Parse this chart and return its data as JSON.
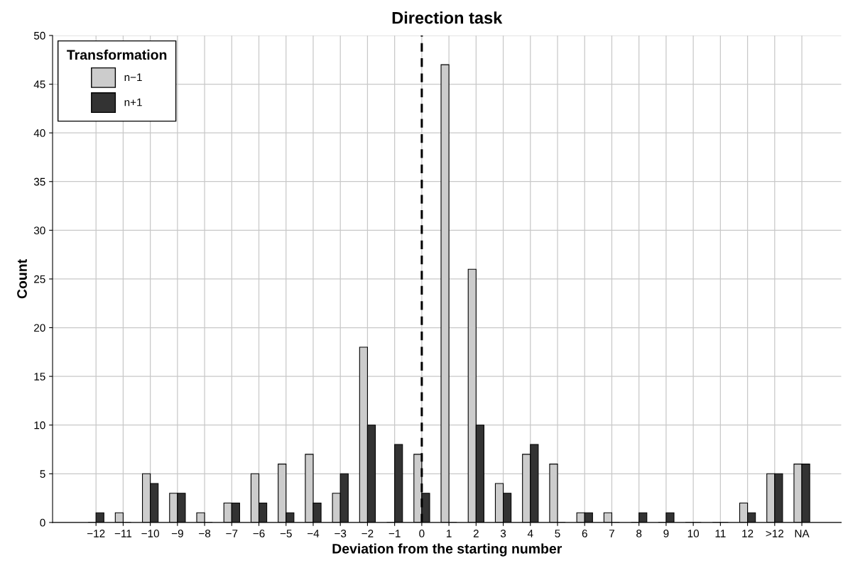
{
  "chart_data": {
    "type": "bar",
    "title": "Direction task",
    "xlabel": "Deviation from the starting number",
    "ylabel": "Count",
    "legend_title": "Transformation",
    "categories": [
      "−12",
      "−11",
      "−10",
      "−9",
      "−8",
      "−7",
      "−6",
      "−5",
      "−4",
      "−3",
      "−2",
      "−1",
      "0",
      "1",
      "2",
      "3",
      "4",
      "5",
      "6",
      "7",
      "8",
      "9",
      "10",
      "11",
      "12",
      ">12",
      "NA"
    ],
    "series": [
      {
        "name": "n−1",
        "color": "#cccccc",
        "values": [
          0,
          1,
          5,
          3,
          1,
          2,
          5,
          6,
          7,
          3,
          18,
          0,
          7,
          47,
          26,
          4,
          7,
          6,
          1,
          1,
          0,
          0,
          0,
          0,
          2,
          5,
          6
        ]
      },
      {
        "name": "n+1",
        "color": "#333333",
        "values": [
          1,
          0,
          4,
          3,
          0,
          2,
          2,
          1,
          2,
          5,
          10,
          8,
          3,
          0,
          10,
          3,
          8,
          0,
          1,
          0,
          1,
          1,
          0,
          0,
          1,
          5,
          6
        ]
      }
    ],
    "ylim": [
      0,
      50
    ],
    "yticks": [
      0,
      5,
      10,
      15,
      20,
      25,
      30,
      35,
      40,
      45,
      50
    ],
    "grid": true,
    "legend": "top left",
    "ref_lines": [
      {
        "axis": "x",
        "value": "0",
        "line_style": "dashed",
        "color": "#000000"
      }
    ]
  }
}
